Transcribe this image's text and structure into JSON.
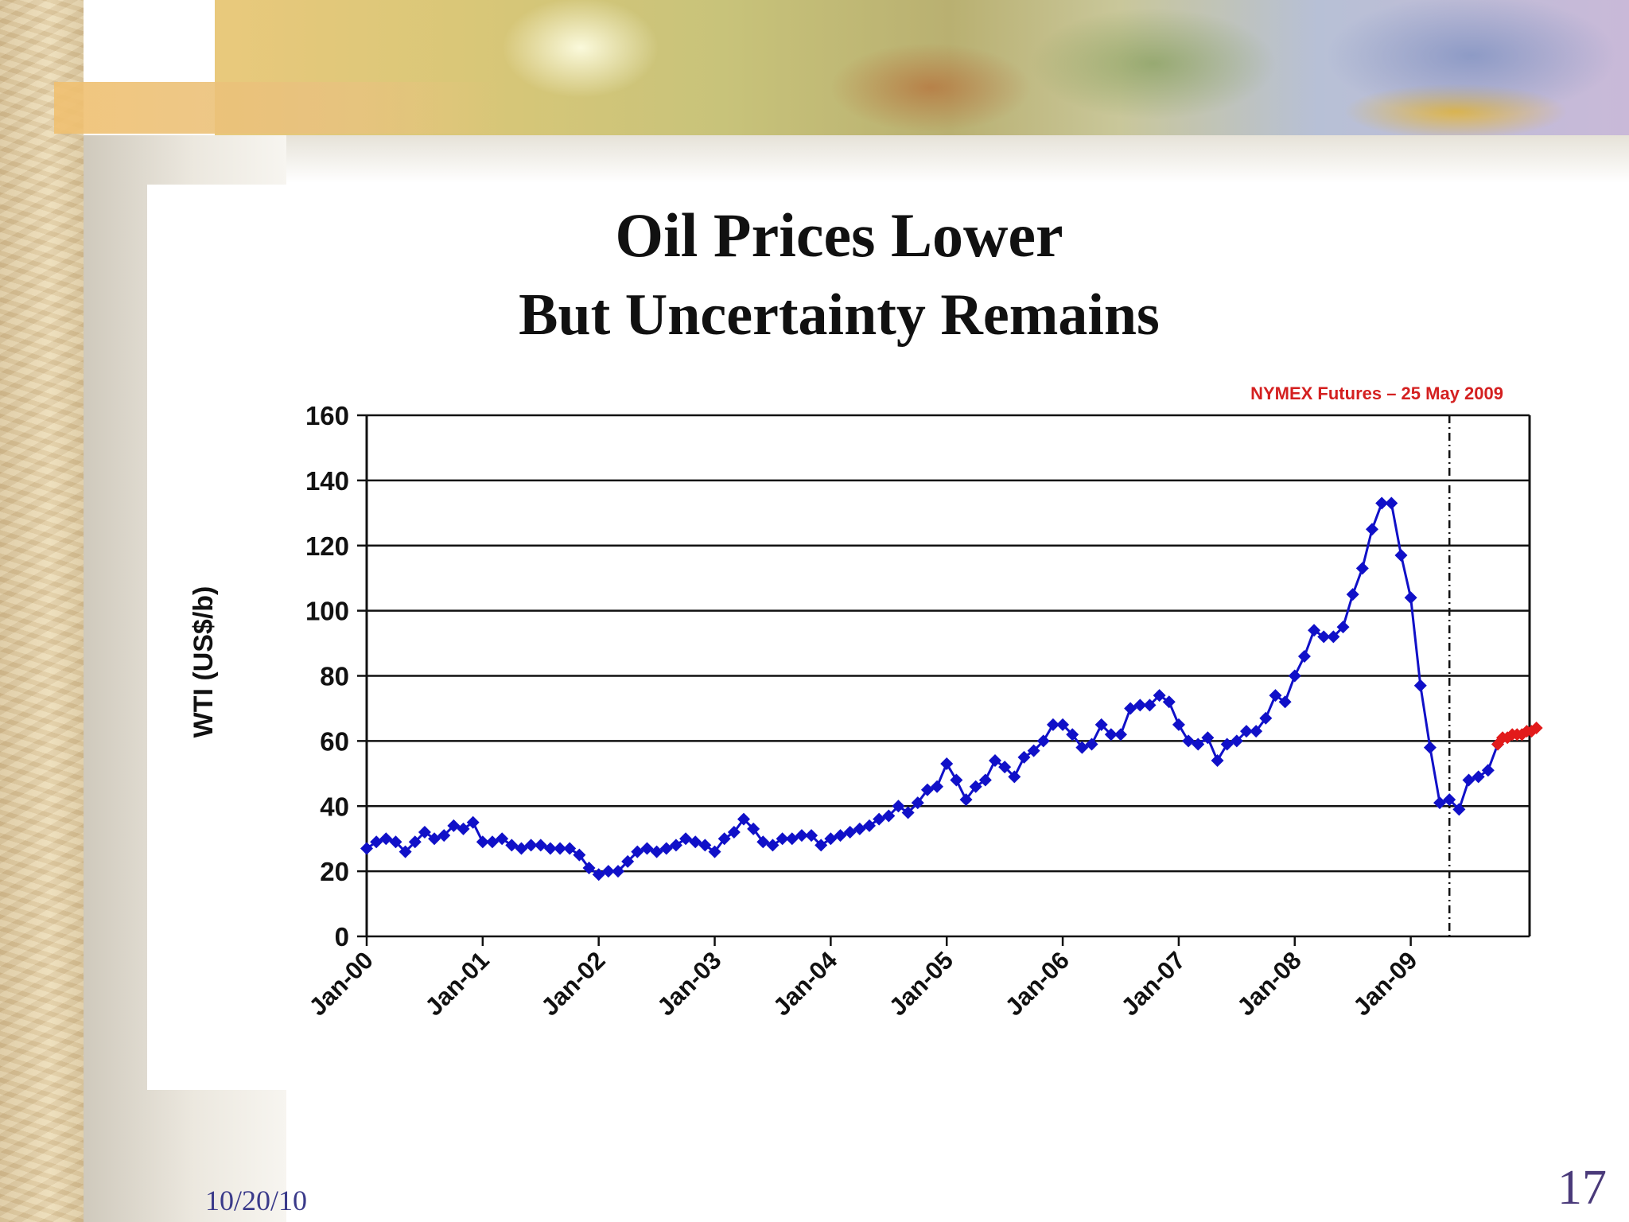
{
  "slide": {
    "date": "10/20/10",
    "page_number": "17"
  },
  "chart_data": {
    "type": "line",
    "title": "Oil Prices Lower",
    "subtitle": "But Uncertainty Remains",
    "ylabel": "WTI (US$/b)",
    "xlabel": "",
    "ylim": [
      0,
      160
    ],
    "yticks": [
      0,
      20,
      40,
      60,
      80,
      100,
      120,
      140,
      160
    ],
    "xlim": [
      0,
      117
    ],
    "xticks": [
      {
        "label": "Jan-00",
        "x": 0
      },
      {
        "label": "Jan-01",
        "x": 12
      },
      {
        "label": "Jan-02",
        "x": 24
      },
      {
        "label": "Jan-03",
        "x": 36
      },
      {
        "label": "Jan-04",
        "x": 48
      },
      {
        "label": "Jan-05",
        "x": 60
      },
      {
        "label": "Jan-06",
        "x": 72
      },
      {
        "label": "Jan-07",
        "x": 84
      },
      {
        "label": "Jan-08",
        "x": 96
      },
      {
        "label": "Jan-09",
        "x": 108
      }
    ],
    "grid": true,
    "annotation": {
      "text": "NYMEX Futures – 25 May 2009",
      "x": 112,
      "color": "#d42020"
    },
    "divider_x": 112,
    "series": [
      {
        "color": "#1010c8",
        "values": [
          [
            0,
            27
          ],
          [
            1,
            29
          ],
          [
            2,
            30
          ],
          [
            3,
            29
          ],
          [
            4,
            26
          ],
          [
            5,
            29
          ],
          [
            6,
            32
          ],
          [
            7,
            30
          ],
          [
            8,
            31
          ],
          [
            9,
            34
          ],
          [
            10,
            33
          ],
          [
            11,
            35
          ],
          [
            12,
            29
          ],
          [
            13,
            29
          ],
          [
            14,
            30
          ],
          [
            15,
            28
          ],
          [
            16,
            27
          ],
          [
            17,
            28
          ],
          [
            18,
            28
          ],
          [
            19,
            27
          ],
          [
            20,
            27
          ],
          [
            21,
            27
          ],
          [
            22,
            25
          ],
          [
            23,
            21
          ],
          [
            24,
            19
          ],
          [
            25,
            20
          ],
          [
            26,
            20
          ],
          [
            27,
            23
          ],
          [
            28,
            26
          ],
          [
            29,
            27
          ],
          [
            30,
            26
          ],
          [
            31,
            27
          ],
          [
            32,
            28
          ],
          [
            33,
            30
          ],
          [
            34,
            29
          ],
          [
            35,
            28
          ],
          [
            36,
            26
          ],
          [
            37,
            30
          ],
          [
            38,
            32
          ],
          [
            39,
            36
          ],
          [
            40,
            33
          ],
          [
            41,
            29
          ],
          [
            42,
            28
          ],
          [
            43,
            30
          ],
          [
            44,
            30
          ],
          [
            45,
            31
          ],
          [
            46,
            31
          ],
          [
            47,
            28
          ],
          [
            48,
            30
          ],
          [
            49,
            31
          ],
          [
            50,
            32
          ],
          [
            51,
            33
          ],
          [
            52,
            34
          ],
          [
            53,
            36
          ],
          [
            54,
            37
          ],
          [
            55,
            40
          ],
          [
            56,
            38
          ],
          [
            57,
            41
          ],
          [
            58,
            45
          ],
          [
            59,
            46
          ],
          [
            60,
            53
          ],
          [
            61,
            48
          ],
          [
            62,
            42
          ],
          [
            63,
            46
          ],
          [
            64,
            48
          ],
          [
            65,
            54
          ],
          [
            66,
            52
          ],
          [
            67,
            49
          ],
          [
            68,
            55
          ],
          [
            69,
            57
          ],
          [
            70,
            60
          ],
          [
            71,
            65
          ],
          [
            72,
            65
          ],
          [
            73,
            62
          ],
          [
            74,
            58
          ],
          [
            75,
            59
          ],
          [
            76,
            65
          ],
          [
            77,
            62
          ],
          [
            78,
            62
          ],
          [
            79,
            70
          ],
          [
            80,
            71
          ],
          [
            81,
            71
          ],
          [
            82,
            74
          ],
          [
            83,
            72
          ],
          [
            84,
            65
          ],
          [
            85,
            60
          ],
          [
            86,
            59
          ],
          [
            87,
            61
          ],
          [
            88,
            54
          ],
          [
            89,
            59
          ],
          [
            90,
            60
          ],
          [
            91,
            63
          ],
          [
            92,
            63
          ],
          [
            93,
            67
          ],
          [
            94,
            74
          ],
          [
            95,
            72
          ],
          [
            96,
            80
          ],
          [
            97,
            86
          ],
          [
            98,
            94
          ],
          [
            99,
            92
          ],
          [
            100,
            92
          ],
          [
            101,
            95
          ],
          [
            102,
            105
          ],
          [
            103,
            113
          ],
          [
            104,
            125
          ],
          [
            105,
            133
          ],
          [
            106,
            133
          ],
          [
            107,
            117
          ],
          [
            108,
            104
          ],
          [
            109,
            77
          ],
          [
            110,
            58
          ],
          [
            111,
            41
          ],
          [
            112,
            42
          ],
          [
            113,
            39
          ],
          [
            114,
            48
          ],
          [
            115,
            49
          ],
          [
            116,
            51
          ],
          [
            117,
            59
          ]
        ]
      },
      {
        "color": "#e21b1b",
        "values": [
          [
            117,
            59
          ],
          [
            117.5,
            61
          ],
          [
            118,
            61
          ],
          [
            118.5,
            62
          ],
          [
            119,
            62
          ],
          [
            119.5,
            62
          ],
          [
            120,
            63
          ],
          [
            120.5,
            63
          ],
          [
            121,
            64
          ]
        ]
      }
    ]
  }
}
